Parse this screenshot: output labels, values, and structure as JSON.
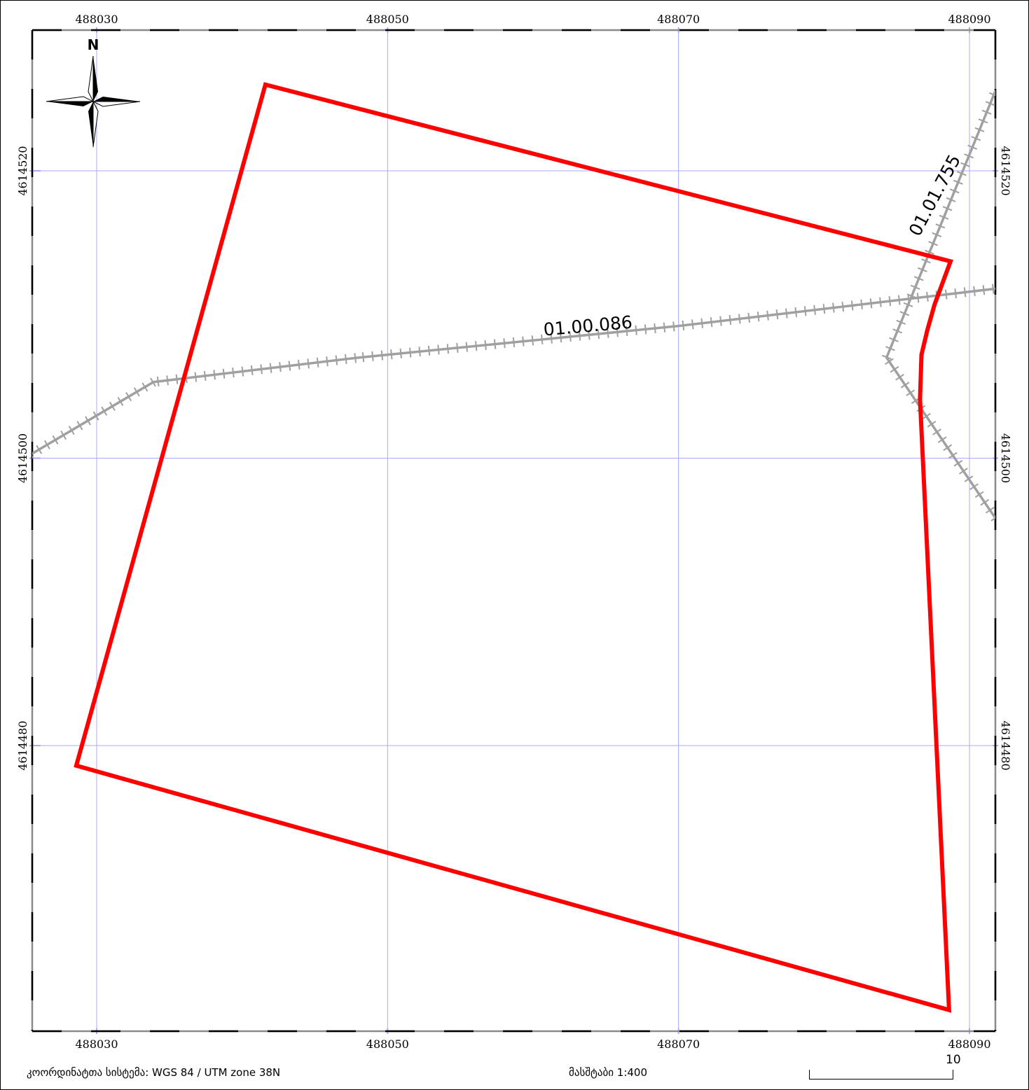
{
  "map": {
    "x_ticks": [
      {
        "label": "488030",
        "value": 488030
      },
      {
        "label": "488050",
        "value": 488050
      },
      {
        "label": "488070",
        "value": 488070
      },
      {
        "label": "488090",
        "value": 488090
      }
    ],
    "y_ticks": [
      {
        "label": "4614520",
        "value": 4614520
      },
      {
        "label": "4614500",
        "value": 4614500
      },
      {
        "label": "4614480",
        "value": 4614480
      }
    ],
    "colors": {
      "parcel_boundary": "#ff0000",
      "grid": "#a8a8ff",
      "railway": "#a0a0a0",
      "frame": "#000000"
    },
    "parcel_boundary": [
      [
        488041.6,
        4614526.0
      ],
      [
        488088.7,
        4614513.7
      ],
      [
        488087.6,
        4614510.7
      ],
      [
        488087.1,
        4614508.9
      ],
      [
        488086.7,
        4614507.2
      ],
      [
        488086.6,
        4614504.1
      ],
      [
        488088.6,
        4614461.6
      ],
      [
        488028.6,
        4614478.6
      ]
    ],
    "railways": [
      {
        "label": "01.00.086",
        "points": [
          [
            488025.2,
            4614500.1
          ],
          [
            488033.9,
            4614505.3
          ],
          [
            488048.0,
            4614507.0
          ],
          [
            488070.0,
            4614509.2
          ],
          [
            488091.8,
            4614511.8
          ]
        ]
      },
      {
        "label": "01.01.755",
        "points": [
          [
            488091.8,
            4614525.6
          ],
          [
            488084.3,
            4614507.0
          ],
          [
            488091.8,
            4614495.8
          ]
        ]
      }
    ],
    "north_arrow": {
      "label": "N",
      "icon": "compass-rose-icon"
    }
  },
  "footer": {
    "coordinate_system": "კოორდინატთა სისტემა: WGS 84 / UTM zone 38N",
    "scale": "მასშტაბი 1:400",
    "scalebar_value": "10"
  }
}
